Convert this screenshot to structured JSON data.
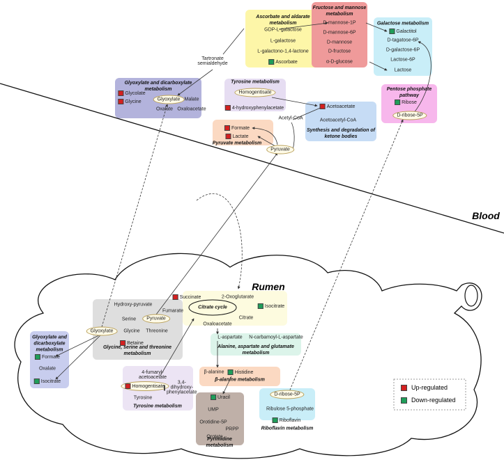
{
  "labels": {
    "blood": "Blood",
    "rumen": "Rumen"
  },
  "legend": [
    {
      "label": "Up-regulated",
      "color": "#d42020"
    },
    {
      "label": "Down-regulated",
      "color": "#1f9e5a"
    }
  ],
  "blood": [
    {
      "title": "Ascorbate and aldarate metabolism",
      "metabolites": [
        {
          "name": "GDP-L-galactose"
        },
        {
          "name": "L-galactose"
        },
        {
          "name": "L-galactono-1,4-lactone"
        },
        {
          "name": "Ascorbate",
          "color": "#1f9e5a"
        }
      ]
    },
    {
      "title": "Fructose and mannose metabolism",
      "metabolites": [
        {
          "name": "D-mannose-1P"
        },
        {
          "name": "D-mannose-6P"
        },
        {
          "name": "D-mannose"
        },
        {
          "name": "D-fructose"
        },
        {
          "name": "α-D-glucose"
        }
      ]
    },
    {
      "title": "Galactose metabolism",
      "metabolites": [
        {
          "name": "Galactitol",
          "color": "#1f9e5a"
        },
        {
          "name": "D-tagatose-6P"
        },
        {
          "name": "D-galactose-6P"
        },
        {
          "name": "Lactose-6P"
        },
        {
          "name": "Lactose"
        }
      ]
    },
    {
      "title": "Glyoxylate and dicarboxylate metabolism",
      "metabolites": [
        {
          "name": "Glycolate",
          "color": "#d42020"
        },
        {
          "name": "Glycine",
          "color": "#d42020"
        },
        {
          "name": "Glyoxylate"
        },
        {
          "name": "Malate"
        },
        {
          "name": "Oxalate"
        },
        {
          "name": "Oxaloacetate"
        }
      ]
    },
    {
      "title": "Tyrosine metabolism",
      "metabolites": [
        {
          "name": "Homogentisate"
        },
        {
          "name": "4-hydroxyphenylacetate",
          "color": "#d42020"
        }
      ]
    },
    {
      "title": "Synthesis and degradation of ketone bodies",
      "metabolites": [
        {
          "name": "Acetoacetate",
          "color": "#d42020"
        },
        {
          "name": "Acetoacetyl-CoA"
        }
      ]
    },
    {
      "title": "Pentose phosphate pathway",
      "metabolites": [
        {
          "name": "Ribose",
          "color": "#1f9e5a"
        },
        {
          "name": "D-ribose-5P"
        }
      ]
    },
    {
      "title": "Pyruvate metabolism",
      "metabolites": [
        {
          "name": "Formate",
          "color": "#d42020"
        },
        {
          "name": "Lactate",
          "color": "#d42020"
        },
        {
          "name": "Pyruvate"
        }
      ]
    }
  ],
  "blood_other": [
    "Tartronate semialdehyde",
    "Acetyl-CoA"
  ],
  "rumen": [
    {
      "title": "Citrate cycle",
      "metabolites": [
        {
          "name": "Succinate",
          "color": "#d42020"
        },
        {
          "name": "2-Oxoglutarate"
        },
        {
          "name": "Isocitrate",
          "color": "#1f9e5a"
        },
        {
          "name": "Fumarate"
        },
        {
          "name": "Citrate"
        },
        {
          "name": "Oxaloacetate"
        }
      ]
    },
    {
      "title": "Glycine, serine and threonine metabolism",
      "metabolites": [
        {
          "name": "Hydroxy-pyruvate"
        },
        {
          "name": "Serine"
        },
        {
          "name": "Pyruvate"
        },
        {
          "name": "Glycine"
        },
        {
          "name": "Threonine"
        },
        {
          "name": "Betaine",
          "color": "#d42020"
        },
        {
          "name": "Glyoxylate"
        }
      ]
    },
    {
      "title": "Glyoxylate and dicarboxylate metabolism",
      "metabolites": [
        {
          "name": "Formate",
          "color": "#1f9e5a"
        },
        {
          "name": "Oxalate"
        },
        {
          "name": "Isocitrate",
          "color": "#1f9e5a"
        }
      ]
    },
    {
      "title": "Alanine, aspartate and glutamate metabolism",
      "metabolites": [
        {
          "name": "L-aspartate"
        },
        {
          "name": "N-carbamoyl-L-aspartate"
        }
      ]
    },
    {
      "title": "β-alanine metabolism",
      "metabolites": [
        {
          "name": "β-alanine"
        },
        {
          "name": "Histidine",
          "color": "#1f9e5a"
        }
      ]
    },
    {
      "title": "Tyrosine metabolism",
      "metabolites": [
        {
          "name": "4-fumaryl-acetoacetate"
        },
        {
          "name": "Homogentisate",
          "color": "#d42020"
        },
        {
          "name": "3,4-dihydroxy-phenylacetate",
          "color": "#d42020"
        },
        {
          "name": "Tyrosine"
        }
      ]
    },
    {
      "title": "Pyrimidine metabolism",
      "metabolites": [
        {
          "name": "Uracil",
          "color": "#1f9e5a"
        },
        {
          "name": "UMP"
        },
        {
          "name": "Orotidine-5P"
        },
        {
          "name": "PRPP"
        },
        {
          "name": "Orotate"
        }
      ]
    },
    {
      "title": "Riboflavin metabolism",
      "metabolites": [
        {
          "name": "D-ribose-5P"
        },
        {
          "name": "Ribulose 5-phosphate"
        },
        {
          "name": "Riboflavin",
          "color": "#1f9e5a"
        }
      ]
    }
  ]
}
